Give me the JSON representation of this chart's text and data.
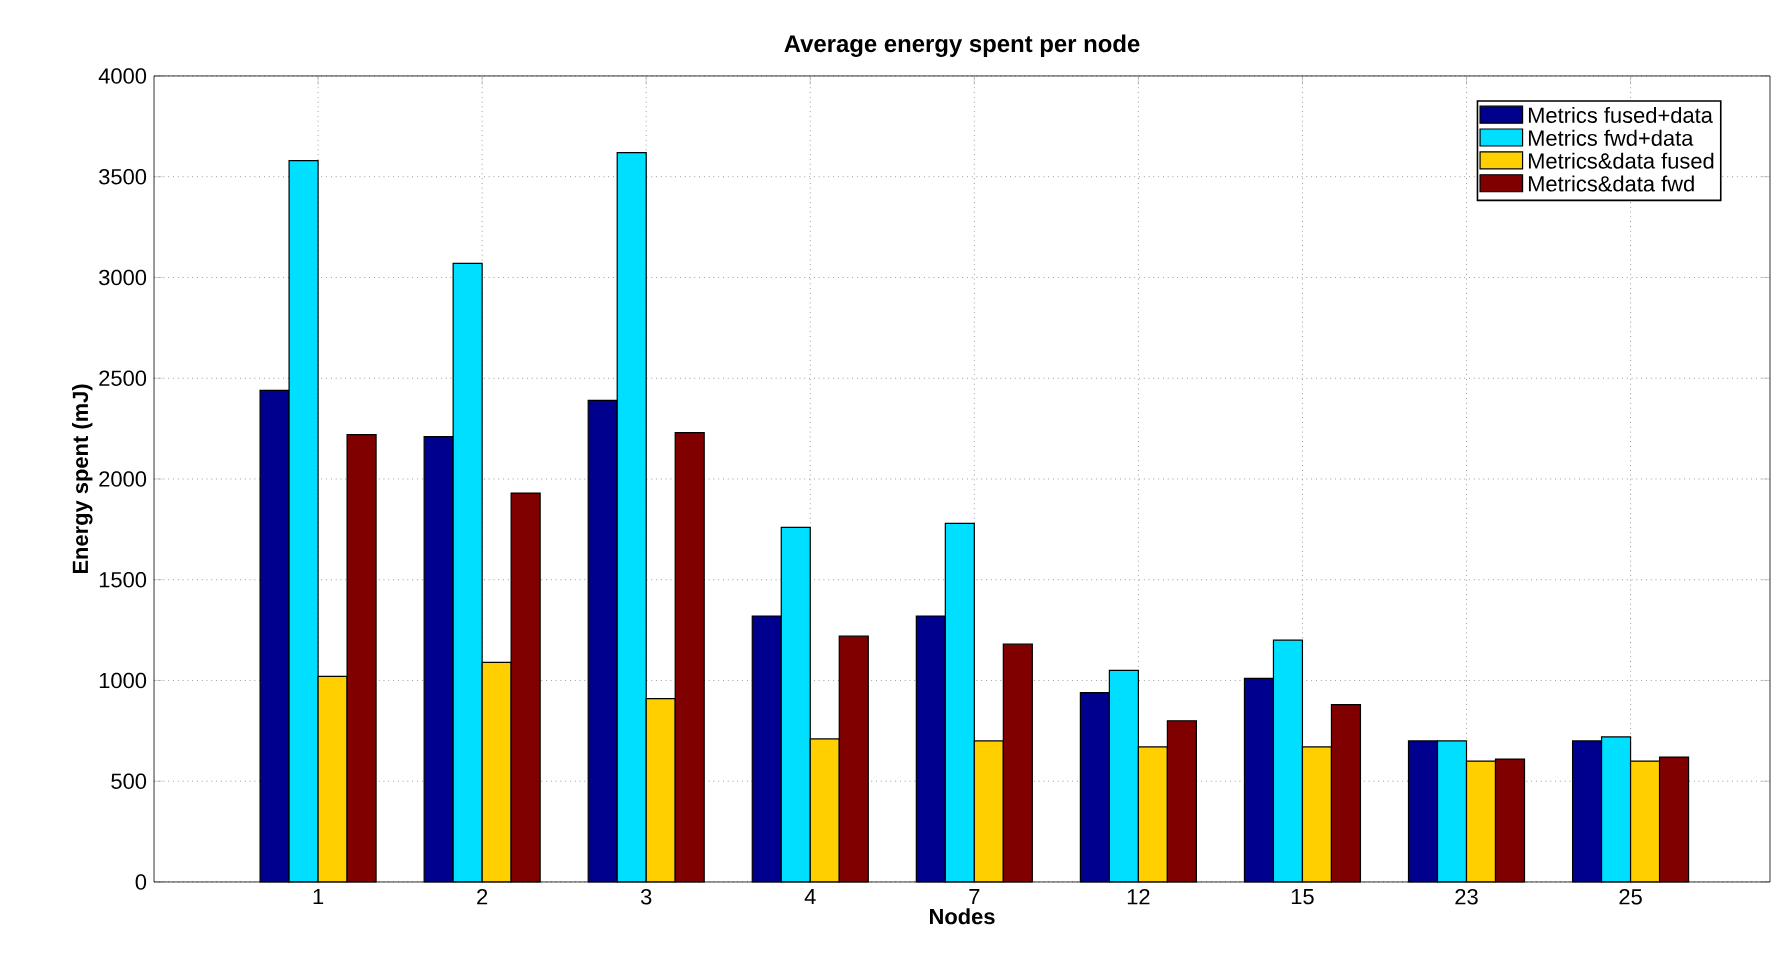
{
  "chart_data": {
    "type": "bar",
    "title": "Average energy spent per node",
    "xlabel": "Nodes",
    "ylabel": "Energy spent (mJ)",
    "categories": [
      "1",
      "2",
      "3",
      "4",
      "7",
      "12",
      "15",
      "23",
      "25"
    ],
    "series": [
      {
        "name": "Metrics fused+data",
        "color": "#00008f",
        "values": [
          2440,
          2210,
          2390,
          1320,
          1320,
          940,
          1010,
          700,
          700
        ]
      },
      {
        "name": "Metrics fwd+data",
        "color": "#00dfff",
        "values": [
          3580,
          3070,
          3620,
          1760,
          1780,
          1050,
          1200,
          700,
          720
        ]
      },
      {
        "name": "Metrics&data fused",
        "color": "#ffcf00",
        "values": [
          1020,
          1090,
          910,
          710,
          700,
          670,
          670,
          600,
          600
        ]
      },
      {
        "name": "Metrics&data fwd",
        "color": "#800000",
        "values": [
          2220,
          1930,
          2230,
          1220,
          1180,
          800,
          880,
          610,
          620
        ]
      }
    ],
    "ylim": [
      0,
      4000
    ],
    "yticks": [
      0,
      500,
      1000,
      1500,
      2000,
      2500,
      3000,
      3500,
      4000
    ],
    "grid": true,
    "legend": "top right"
  }
}
